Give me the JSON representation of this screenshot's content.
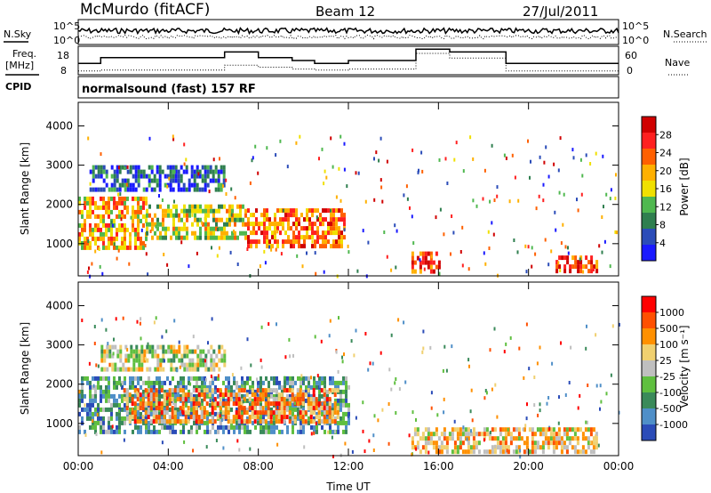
{
  "header": {
    "station": "McMurdo (fitACF)",
    "beam": "Beam 12",
    "date": "27/Jul/2011"
  },
  "top_panels": {
    "nsky_label": "N.Sky",
    "nsky_ticks": [
      "10^5",
      "10^0"
    ],
    "nsearch_label": "N.Search",
    "nsearch_ticks": [
      "10^5",
      "10^0"
    ],
    "freq_label": "Freq.",
    "freq_unit": "[MHz]",
    "freq_ticks": [
      "18",
      "8"
    ],
    "nave_label": "Nave",
    "nave_ticks": [
      "60",
      "0"
    ],
    "cpid_label": "CPID",
    "cpid_value": "normalsound (fast) 157 RF"
  },
  "colors": {
    "power_scale": [
      "#1a1aff",
      "#2b4cb8",
      "#2f7f4f",
      "#4fb84f",
      "#f0e000",
      "#ffb000",
      "#ff6000",
      "#ff2020",
      "#d00000"
    ],
    "velocity_scale": [
      "#2b4cb8",
      "#4f8fc8",
      "#3a8a5a",
      "#5fbf3f",
      "#bfbfbf",
      "#f0d070",
      "#ff9000",
      "#ff5000",
      "#ff0000"
    ]
  },
  "chart_data": [
    {
      "type": "heatmap",
      "name": "power",
      "ylabel": "Slant Range [km]",
      "xlabel": "Time UT",
      "x_ticks": [
        "00:00",
        "04:00",
        "08:00",
        "12:00",
        "16:00",
        "20:00",
        "00:00"
      ],
      "y_ticks": [
        "1000",
        "2000",
        "3000",
        "4000"
      ],
      "ylim": [
        180,
        4600
      ],
      "xlim_hours": [
        0,
        24
      ],
      "colorbar_label": "Power [dB]",
      "colorbar_ticks": [
        "4",
        "8",
        "12",
        "16",
        "20",
        "24",
        "28"
      ],
      "regions": [
        {
          "t": [
            0.0,
            3.0
          ],
          "r": [
            900,
            2200
          ],
          "level": 5
        },
        {
          "t": [
            3.0,
            7.5
          ],
          "r": [
            1100,
            2000
          ],
          "level": 4
        },
        {
          "t": [
            7.5,
            11.8
          ],
          "r": [
            900,
            1900
          ],
          "level": 6
        },
        {
          "t": [
            0.5,
            6.5
          ],
          "r": [
            2400,
            3000
          ],
          "level": 1
        },
        {
          "t": [
            14.8,
            16.0
          ],
          "r": [
            250,
            800
          ],
          "level": 7
        },
        {
          "t": [
            21.2,
            23.0
          ],
          "r": [
            300,
            700
          ],
          "level": 7
        }
      ]
    },
    {
      "type": "heatmap",
      "name": "velocity",
      "ylabel": "Slant Range [km]",
      "xlabel": "Time UT",
      "x_ticks": [
        "00:00",
        "04:00",
        "08:00",
        "12:00",
        "16:00",
        "20:00",
        "00:00"
      ],
      "y_ticks": [
        "1000",
        "2000",
        "3000",
        "4000"
      ],
      "ylim": [
        180,
        4600
      ],
      "xlim_hours": [
        0,
        24
      ],
      "colorbar_label": "Velocity [m s⁻¹]",
      "colorbar_ticks": [
        "-1000",
        "-500",
        "-100",
        "-25",
        "25",
        "100",
        "500",
        "1000"
      ],
      "regions": [
        {
          "t": [
            0.0,
            12.0
          ],
          "r": [
            800,
            2200
          ],
          "level": 2
        },
        {
          "t": [
            2.0,
            11.5
          ],
          "r": [
            1100,
            1900
          ],
          "level": 6
        },
        {
          "t": [
            1.0,
            6.5
          ],
          "r": [
            2400,
            3000
          ],
          "level": 4
        },
        {
          "t": [
            14.8,
            23.0
          ],
          "r": [
            250,
            900
          ],
          "level": 5
        }
      ]
    }
  ],
  "line_data": {
    "nsky_mean_level": 0.55,
    "nsearch_mean_level": 0.3,
    "freq_steps_hours": [
      0,
      1.0,
      6.5,
      8.0,
      9.5,
      10.5,
      12.0,
      15.0,
      16.5,
      19.0,
      24
    ],
    "freq_values": [
      12,
      14,
      16,
      14,
      13,
      12,
      13,
      17,
      16,
      12,
      12
    ],
    "nave_steps_hours": [
      0,
      1.0,
      6.5,
      8.0,
      9.5,
      10.5,
      12.0,
      15.0,
      16.5,
      19.0,
      24
    ],
    "nave_values": [
      8,
      10,
      20,
      16,
      12,
      10,
      12,
      45,
      35,
      8,
      8
    ]
  }
}
